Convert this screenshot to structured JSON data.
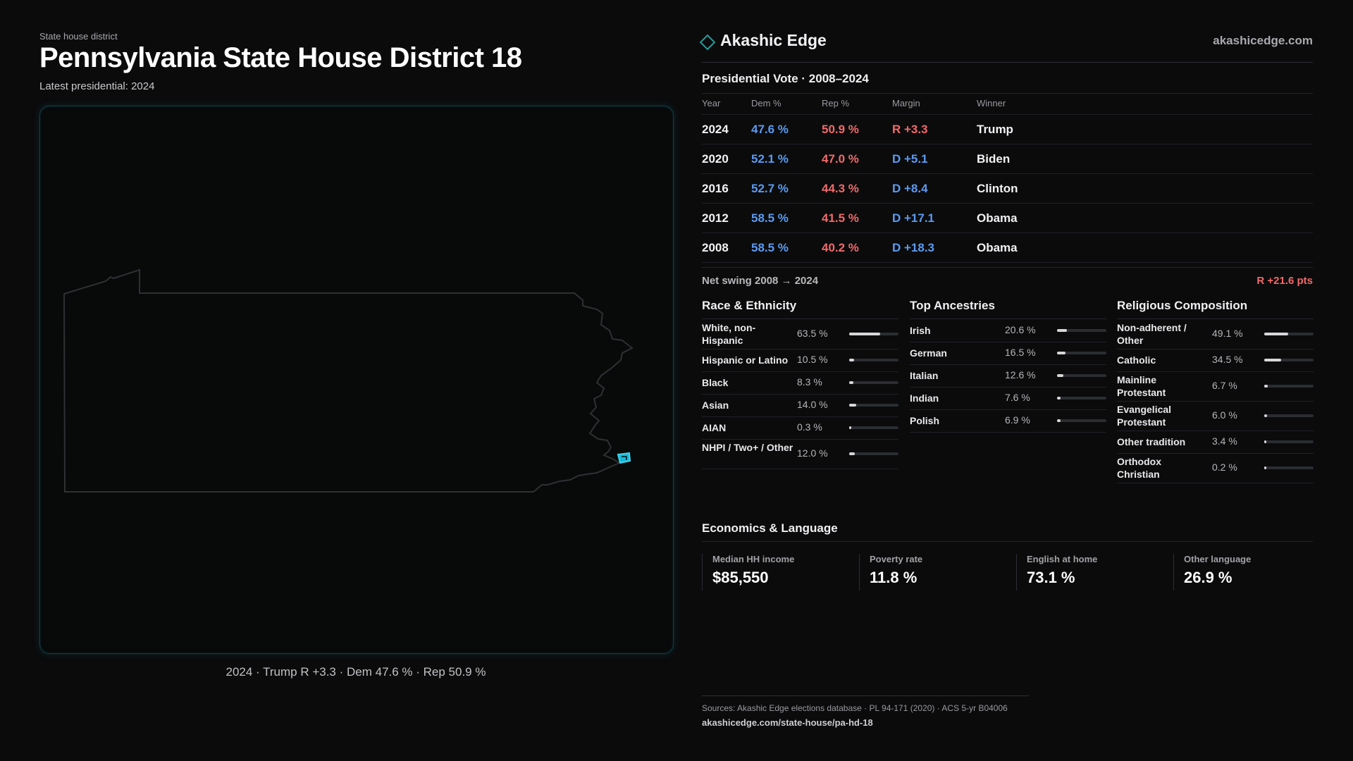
{
  "left": {
    "kicker": "State house district",
    "title": "Pennsylvania State House District 18",
    "subtitle": "Latest presidential: 2024",
    "map_caption": "2024 · Trump R +3.3 · Dem 47.6 % · Rep 50.9 %",
    "map_icons": {
      "state": "pennsylvania-outline",
      "district": "district-highlight"
    },
    "colors": {
      "state_stroke": "#2e3033",
      "district_fill": "#19b7d6"
    }
  },
  "header": {
    "brand_name": "Akashic Edge",
    "brand_url": "akashicedge.com",
    "brand_icon": "diamond-icon",
    "accent": "#2a9a98"
  },
  "vote": {
    "title": "Presidential Vote · 2008–2024",
    "headers": {
      "year": "Year",
      "dem": "Dem %",
      "rep": "Rep %",
      "margin": "Margin",
      "winner": "Winner"
    },
    "rows": [
      {
        "year": "2024",
        "dem": "47.6 %",
        "rep": "50.9 %",
        "margin": "R +3.3",
        "party": "R",
        "winner": "Trump"
      },
      {
        "year": "2020",
        "dem": "52.1 %",
        "rep": "47.0 %",
        "margin": "D +5.1",
        "party": "D",
        "winner": "Biden"
      },
      {
        "year": "2016",
        "dem": "52.7 %",
        "rep": "44.3 %",
        "margin": "D +8.4",
        "party": "D",
        "winner": "Clinton"
      },
      {
        "year": "2012",
        "dem": "58.5 %",
        "rep": "41.5 %",
        "margin": "D +17.1",
        "party": "D",
        "winner": "Obama"
      },
      {
        "year": "2008",
        "dem": "58.5 %",
        "rep": "40.2 %",
        "margin": "D +18.3",
        "party": "D",
        "winner": "Obama"
      }
    ],
    "swing_label": "Net swing 2008 → 2024",
    "swing_value": "R +21.6 pts",
    "colors": {
      "dem": "#5b9bf0",
      "rep": "#f06a6a"
    }
  },
  "race": {
    "title": "Race & Ethnicity",
    "items": [
      {
        "label": "White, non-Hispanic",
        "value": "63.5 %",
        "fraction": 0.635
      },
      {
        "label": "Hispanic or Latino",
        "value": "10.5 %",
        "fraction": 0.105
      },
      {
        "label": "Black",
        "value": "8.3 %",
        "fraction": 0.083
      },
      {
        "label": "Asian",
        "value": "14.0 %",
        "fraction": 0.14
      },
      {
        "label": "AIAN",
        "value": "0.3 %",
        "fraction": 0.003
      },
      {
        "label": "NHPI / Two+ / Other",
        "value": "12.0 %",
        "fraction": 0.12
      }
    ]
  },
  "ancestry": {
    "title": "Top Ancestries",
    "items": [
      {
        "label": "Irish",
        "value": "20.6 %",
        "fraction": 0.206
      },
      {
        "label": "German",
        "value": "16.5 %",
        "fraction": 0.165
      },
      {
        "label": "Italian",
        "value": "12.6 %",
        "fraction": 0.126
      },
      {
        "label": "Indian",
        "value": "7.6 %",
        "fraction": 0.076
      },
      {
        "label": "Polish",
        "value": "6.9 %",
        "fraction": 0.069
      }
    ]
  },
  "religion": {
    "title": "Religious Composition",
    "items": [
      {
        "label": "Non-adherent / Other",
        "value": "49.1 %",
        "fraction": 0.491
      },
      {
        "label": "Catholic",
        "value": "34.5 %",
        "fraction": 0.345
      },
      {
        "label": "Mainline Protestant",
        "value": "6.7 %",
        "fraction": 0.067
      },
      {
        "label": "Evangelical Protestant",
        "value": "6.0 %",
        "fraction": 0.06
      },
      {
        "label": "Other tradition",
        "value": "3.4 %",
        "fraction": 0.034
      },
      {
        "label": "Orthodox Christian",
        "value": "0.2 %",
        "fraction": 0.002
      }
    ]
  },
  "economics": {
    "title": "Economics & Language",
    "stats": [
      {
        "label": "Median HH income",
        "value": "$85,550"
      },
      {
        "label": "Poverty rate",
        "value": "11.8 %"
      },
      {
        "label": "English at home",
        "value": "73.1 %"
      },
      {
        "label": "Other language",
        "value": "26.9 %"
      }
    ]
  },
  "footer": {
    "sources": "Sources: Akashic Edge elections database · PL 94-171 (2020) · ACS 5-yr B04006",
    "url": "akashicedge.com/state-house/pa-hd-18"
  }
}
